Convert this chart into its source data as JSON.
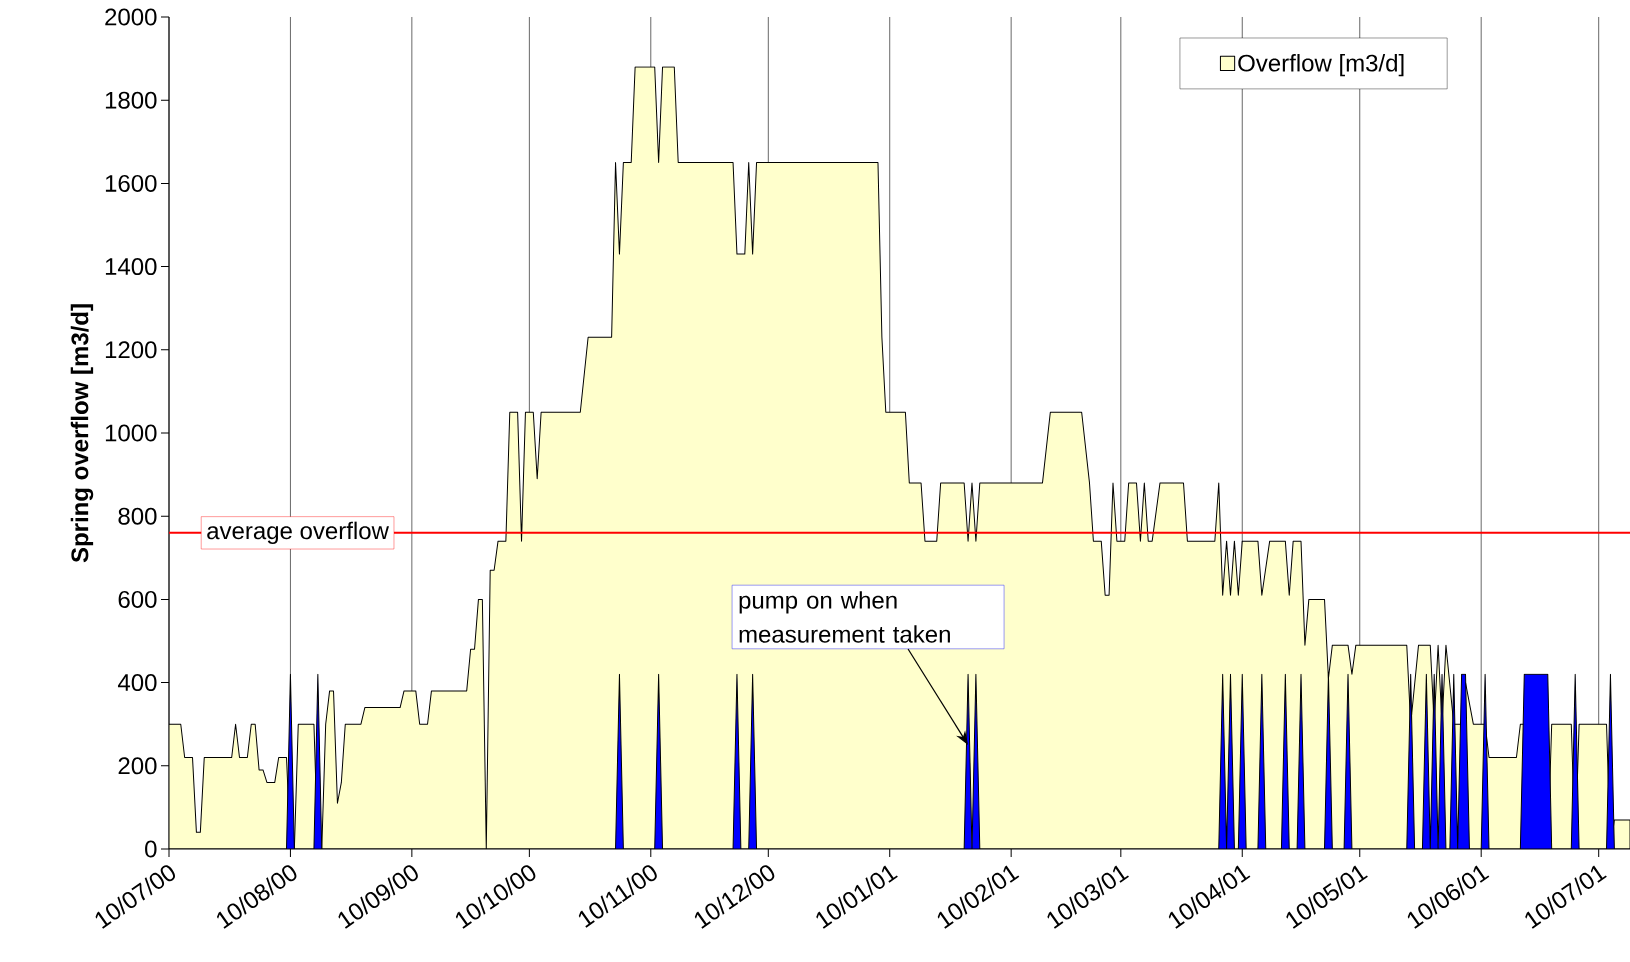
{
  "chart_data": {
    "type": "area",
    "ylabel": "Spring overflow [m3/d]",
    "xlim": [
      "2000-07-10",
      "2001-07-18"
    ],
    "ylim": [
      0,
      2000
    ],
    "yticks": [
      0,
      200,
      400,
      600,
      800,
      1000,
      1200,
      1400,
      1600,
      1800,
      2000
    ],
    "xticks": [
      {
        "value": "2000-07-10",
        "label": "10/07/00"
      },
      {
        "value": "2000-08-10",
        "label": "10/08/00"
      },
      {
        "value": "2000-09-10",
        "label": "10/09/00"
      },
      {
        "value": "2000-10-10",
        "label": "10/10/00"
      },
      {
        "value": "2000-11-10",
        "label": "10/11/00"
      },
      {
        "value": "2000-12-10",
        "label": "10/12/00"
      },
      {
        "value": "2001-01-10",
        "label": "10/01/01"
      },
      {
        "value": "2001-02-10",
        "label": "10/02/01"
      },
      {
        "value": "2001-03-10",
        "label": "10/03/01"
      },
      {
        "value": "2001-04-10",
        "label": "10/04/01"
      },
      {
        "value": "2001-05-10",
        "label": "10/05/01"
      },
      {
        "value": "2001-06-10",
        "label": "10/06/01"
      },
      {
        "value": "2001-07-10",
        "label": "10/07/01"
      }
    ],
    "grid": "x",
    "legend": "top right",
    "series": [
      {
        "name": "Overflow [m3/d]",
        "color": "#ffffcc",
        "x": [
          "2000-07-10",
          "2000-07-13",
          "2000-07-14",
          "2000-07-16",
          "2000-07-17",
          "2000-07-18",
          "2000-07-19",
          "2000-07-26",
          "2000-07-27",
          "2000-07-28",
          "2000-07-30",
          "2000-07-31",
          "2000-08-01",
          "2000-08-02",
          "2000-08-03",
          "2000-08-04",
          "2000-08-06",
          "2000-08-07",
          "2000-08-09",
          "2000-08-10",
          "2000-08-11",
          "2000-08-12",
          "2000-08-16",
          "2000-08-17",
          "2000-08-18",
          "2000-08-19",
          "2000-08-20",
          "2000-08-21",
          "2000-08-22",
          "2000-08-23",
          "2000-08-24",
          "2000-08-28",
          "2000-08-29",
          "2000-09-07",
          "2000-09-08",
          "2000-09-11",
          "2000-09-12",
          "2000-09-14",
          "2000-09-15",
          "2000-09-24",
          "2000-09-25",
          "2000-09-26",
          "2000-09-27",
          "2000-09-28",
          "2000-09-29",
          "2000-09-30",
          "2000-10-01",
          "2000-10-02",
          "2000-10-04",
          "2000-10-05",
          "2000-10-07",
          "2000-10-08",
          "2000-10-09",
          "2000-10-11",
          "2000-10-12",
          "2000-10-13",
          "2000-10-23",
          "2000-10-25",
          "2000-10-31",
          "2000-11-01",
          "2000-11-02",
          "2000-11-03",
          "2000-11-05",
          "2000-11-06",
          "2000-11-11",
          "2000-11-12",
          "2000-11-13",
          "2000-11-16",
          "2000-11-17",
          "2000-12-01",
          "2000-12-02",
          "2000-12-04",
          "2000-12-05",
          "2000-12-06",
          "2000-12-07",
          "2001-01-07",
          "2001-01-08",
          "2001-01-09",
          "2001-01-14",
          "2001-01-15",
          "2001-01-18",
          "2001-01-19",
          "2001-01-22",
          "2001-01-23",
          "2001-01-29",
          "2001-01-30",
          "2001-01-31",
          "2001-02-01",
          "2001-02-02",
          "2001-02-18",
          "2001-02-20",
          "2001-02-28",
          "2001-03-02",
          "2001-03-03",
          "2001-03-05",
          "2001-03-06",
          "2001-03-07",
          "2001-03-08",
          "2001-03-09",
          "2001-03-11",
          "2001-03-12",
          "2001-03-14",
          "2001-03-15",
          "2001-03-16",
          "2001-03-17",
          "2001-03-18",
          "2001-03-20",
          "2001-03-26",
          "2001-03-27",
          "2001-04-03",
          "2001-04-04",
          "2001-04-05",
          "2001-04-06",
          "2001-04-07",
          "2001-04-08",
          "2001-04-09",
          "2001-04-10",
          "2001-04-14",
          "2001-04-15",
          "2001-04-17",
          "2001-04-21",
          "2001-04-22",
          "2001-04-23",
          "2001-04-25",
          "2001-04-26",
          "2001-04-27",
          "2001-05-01",
          "2001-05-02",
          "2001-05-03",
          "2001-05-07",
          "2001-05-08",
          "2001-05-09",
          "2001-05-22",
          "2001-05-23",
          "2001-05-25",
          "2001-05-28",
          "2001-05-29",
          "2001-05-30",
          "2001-05-31",
          "2001-06-01",
          "2001-06-03",
          "2001-06-05",
          "2001-06-06",
          "2001-06-08",
          "2001-06-11",
          "2001-06-12",
          "2001-06-19",
          "2001-06-20",
          "2001-06-21",
          "2001-06-22",
          "2001-06-27",
          "2001-06-28",
          "2001-07-03",
          "2001-07-04",
          "2001-07-05",
          "2001-07-12",
          "2001-07-13",
          "2001-07-14",
          "2001-07-18"
        ],
        "values": [
          300,
          300,
          220,
          220,
          40,
          40,
          220,
          220,
          300,
          220,
          220,
          300,
          300,
          190,
          190,
          160,
          160,
          220,
          220,
          0,
          0,
          300,
          300,
          0,
          0,
          300,
          380,
          380,
          110,
          160,
          300,
          300,
          340,
          340,
          380,
          380,
          300,
          300,
          380,
          380,
          480,
          480,
          600,
          600,
          0,
          670,
          670,
          740,
          740,
          1050,
          1050,
          740,
          1050,
          1050,
          890,
          1050,
          1050,
          1230,
          1230,
          1650,
          1430,
          1650,
          1650,
          1880,
          1880,
          1650,
          1880,
          1880,
          1650,
          1650,
          1430,
          1430,
          1650,
          1430,
          1650,
          1650,
          1230,
          1050,
          1050,
          880,
          880,
          740,
          740,
          880,
          880,
          740,
          880,
          740,
          880,
          880,
          1050,
          1050,
          880,
          740,
          740,
          610,
          610,
          880,
          740,
          740,
          880,
          880,
          740,
          880,
          740,
          740,
          880,
          880,
          740,
          740,
          880,
          610,
          740,
          610,
          740,
          610,
          740,
          740,
          610,
          740,
          740,
          610,
          740,
          740,
          490,
          600,
          600,
          410,
          490,
          490,
          420,
          490,
          490,
          300,
          490,
          490,
          300,
          490,
          300,
          490,
          300,
          300,
          400,
          300,
          300,
          220,
          220,
          300,
          300,
          0,
          0,
          300,
          300,
          0,
          300,
          300,
          0,
          70,
          70
        ]
      },
      {
        "color": "#0000ff",
        "x": [
          "2000-07-10",
          "2000-08-09",
          "2000-08-10",
          "2000-08-11",
          "2000-08-16",
          "2000-08-17",
          "2000-08-18",
          "2000-11-01",
          "2000-11-02",
          "2000-11-03",
          "2000-11-11",
          "2000-11-12",
          "2000-11-13",
          "2000-12-01",
          "2000-12-02",
          "2000-12-03",
          "2000-12-05",
          "2000-12-06",
          "2000-12-07",
          "2001-01-29",
          "2001-01-30",
          "2001-01-31",
          "2001-01-31",
          "2001-02-01",
          "2001-02-02",
          "2001-04-04",
          "2001-04-05",
          "2001-04-06",
          "2001-04-06",
          "2001-04-07",
          "2001-04-08",
          "2001-04-09",
          "2001-04-10",
          "2001-04-11",
          "2001-04-14",
          "2001-04-15",
          "2001-04-16",
          "2001-04-20",
          "2001-04-21",
          "2001-04-22",
          "2001-04-24",
          "2001-04-25",
          "2001-04-26",
          "2001-05-01",
          "2001-05-02",
          "2001-05-03",
          "2001-05-06",
          "2001-05-07",
          "2001-05-08",
          "2001-05-22",
          "2001-05-23",
          "2001-05-24",
          "2001-05-26",
          "2001-05-27",
          "2001-05-28",
          "2001-05-28",
          "2001-05-29",
          "2001-05-30",
          "2001-05-30",
          "2001-05-31",
          "2001-06-01",
          "2001-06-02",
          "2001-06-03",
          "2001-06-04",
          "2001-06-04",
          "2001-06-05",
          "2001-06-06",
          "2001-06-07",
          "2001-06-10",
          "2001-06-11",
          "2001-06-12",
          "2001-06-20",
          "2001-06-21",
          "2001-06-27",
          "2001-06-28",
          "2001-07-03",
          "2001-07-04",
          "2001-07-05",
          "2001-07-12",
          "2001-07-13",
          "2001-07-14",
          "2001-07-18"
        ],
        "values": [
          0,
          0,
          420,
          0,
          0,
          420,
          0,
          0,
          420,
          0,
          0,
          420,
          0,
          0,
          420,
          0,
          0,
          420,
          0,
          0,
          420,
          0,
          0,
          420,
          0,
          0,
          420,
          0,
          0,
          420,
          0,
          0,
          420,
          0,
          0,
          420,
          0,
          0,
          420,
          0,
          0,
          420,
          0,
          0,
          420,
          0,
          0,
          420,
          0,
          0,
          420,
          0,
          0,
          420,
          0,
          0,
          420,
          0,
          0,
          420,
          0,
          0,
          420,
          0,
          0,
          420,
          420,
          0,
          0,
          420,
          0,
          0,
          420,
          420,
          0,
          0,
          420,
          0,
          0,
          420,
          0,
          0
        ]
      }
    ],
    "ref_lines": [
      {
        "axis": "y",
        "value": 760,
        "label": "average overflow",
        "color": "#ff0000"
      }
    ],
    "annotations": [
      {
        "text": "pump on when measurement taken",
        "x": "2001-01-30",
        "y": 250
      }
    ]
  }
}
